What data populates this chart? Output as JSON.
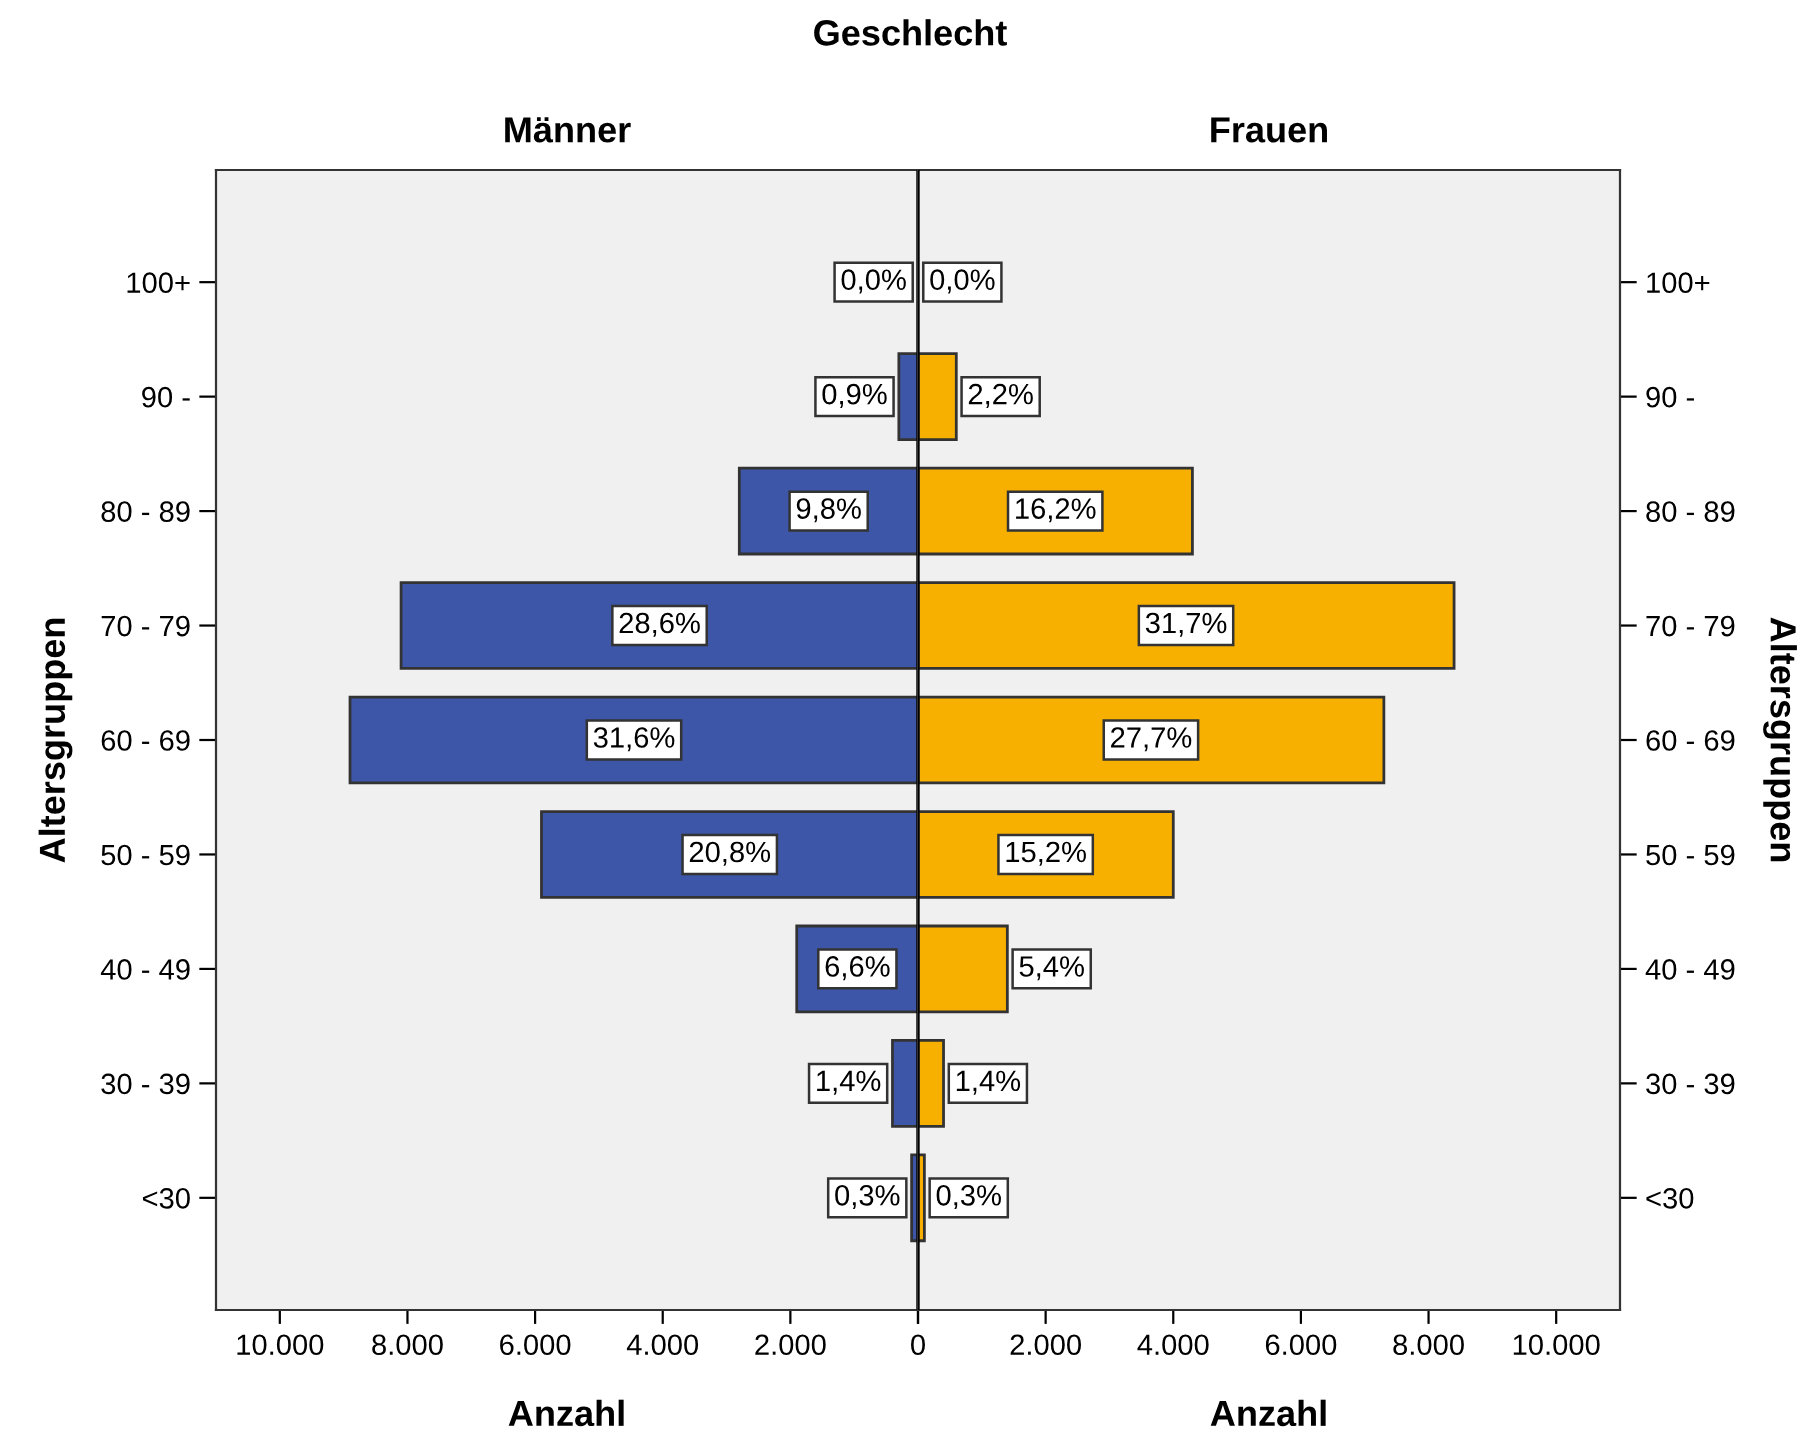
{
  "chart_data": [
    {
      "type": "bar",
      "orientation": "horizontal",
      "title": "Männer",
      "xlabel": "Anzahl",
      "ylabel": "Altersgruppen",
      "categories": [
        "100+",
        "90 -",
        "80 - 89",
        "70 - 79",
        "60 - 69",
        "50 - 59",
        "40 - 49",
        "30 - 39",
        "<30"
      ],
      "series": [
        {
          "color": "#3d56a8",
          "values": [
            0,
            300,
            2800,
            8100,
            8900,
            5900,
            1900,
            400,
            100
          ]
        }
      ],
      "annotations": [
        "0,0%",
        "0,9%",
        "9,8%",
        "28,6%",
        "31,6%",
        "20,8%",
        "6,6%",
        "1,4%",
        "0,3%",
        "Geschlecht"
      ],
      "xlim": [
        11000,
        0
      ],
      "xticks": [
        {
          "value": 10000,
          "label": "10.000"
        },
        {
          "value": 8000,
          "label": "8.000"
        },
        {
          "value": 6000,
          "label": "6.000"
        },
        {
          "value": 4000,
          "label": "4.000"
        },
        {
          "value": 2000,
          "label": "2.000"
        },
        {
          "value": 0,
          "label": null
        }
      ],
      "grid": false,
      "legend": false
    },
    {
      "type": "bar",
      "orientation": "horizontal",
      "title": "Frauen",
      "xlabel": "Anzahl",
      "ylabel": "Altersgruppen",
      "categories": [
        "100+",
        "90 -",
        "80 - 89",
        "70 - 79",
        "60 - 69",
        "50 - 59",
        "40 - 49",
        "30 - 39",
        "<30"
      ],
      "series": [
        {
          "color": "#f7b000",
          "values": [
            0,
            600,
            4300,
            8400,
            7300,
            4000,
            1400,
            400,
            100
          ]
        }
      ],
      "annotations": [
        "0,0%",
        "2,2%",
        "16,2%",
        "31,7%",
        "27,7%",
        "15,2%",
        "5,4%",
        "1,4%",
        "0,3%"
      ],
      "xlim": [
        0,
        11000
      ],
      "xticks": [
        0,
        {
          "value": 2000,
          "label": "2.000"
        },
        {
          "value": 4000,
          "label": "4.000"
        },
        {
          "value": 6000,
          "label": "6.000"
        },
        {
          "value": 8000,
          "label": "8.000"
        },
        {
          "value": 10000,
          "label": "10.000"
        }
      ],
      "grid": false,
      "legend": false
    }
  ]
}
